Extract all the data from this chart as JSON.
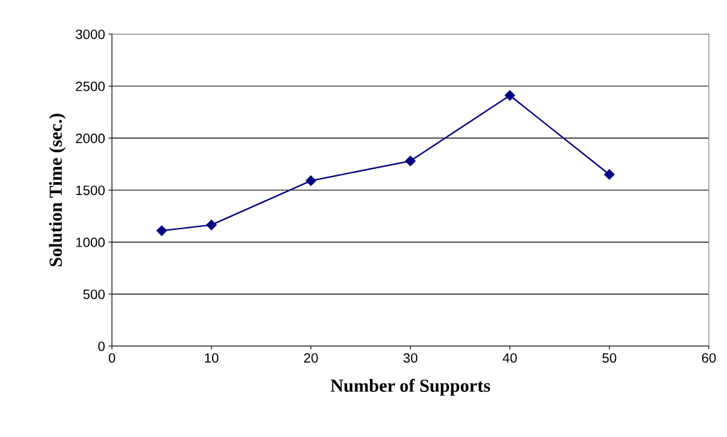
{
  "chart_data": {
    "type": "line",
    "xlabel": "Number of Supports",
    "ylabel": "Solution Time (sec.)",
    "x": [
      5,
      10,
      20,
      30,
      40,
      50
    ],
    "series": [
      {
        "color": "#000080",
        "values": [
          1110,
          1165,
          1590,
          1780,
          2410,
          1650
        ]
      }
    ],
    "xlim": [
      0,
      60
    ],
    "xticks": [
      0,
      10,
      20,
      30,
      40,
      50,
      60
    ],
    "ylim": [
      0,
      3000
    ],
    "yticks": [
      0,
      500,
      1000,
      1500,
      2000,
      2500,
      3000
    ],
    "grid": "y",
    "marker": "diamond",
    "line_style": "solid"
  }
}
